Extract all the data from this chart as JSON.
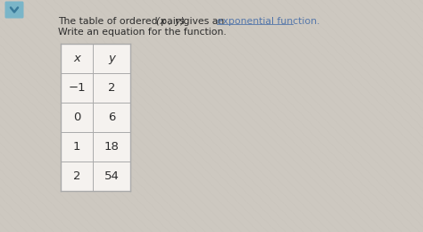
{
  "title_part1": "The table of ordered pairs ",
  "title_italic": "(x , y)",
  "title_part2": " gives an ",
  "title_link": "exponential function.",
  "title_line2": "Write an equation for the function.",
  "col_headers": [
    "x",
    "y"
  ],
  "rows": [
    [
      "−1",
      "2"
    ],
    [
      "0",
      "6"
    ],
    [
      "1",
      "18"
    ],
    [
      "2",
      "54"
    ]
  ],
  "bg_color": "#cdc8c0",
  "table_bg": "#f5f2ef",
  "text_color": "#2c2c2c",
  "link_color": "#5577aa",
  "cell_border": "#aaaaaa",
  "chevron_bg": "#7ab5c8",
  "chevron_color": "#3a7a9a"
}
